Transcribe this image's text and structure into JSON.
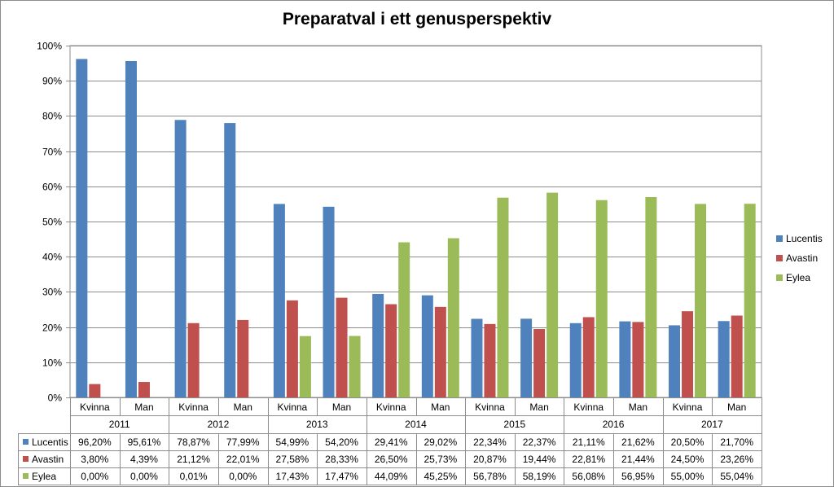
{
  "chart_data": {
    "type": "bar",
    "title": "Preparatval i ett genusperspektiv",
    "xlabel": "",
    "ylabel": "",
    "ylim": [
      0,
      100
    ],
    "yticks": [
      "0%",
      "10%",
      "20%",
      "30%",
      "40%",
      "50%",
      "60%",
      "70%",
      "80%",
      "90%",
      "100%"
    ],
    "grid": true,
    "legend": "right",
    "groups": [
      "2011",
      "2012",
      "2013",
      "2014",
      "2015",
      "2016",
      "2017"
    ],
    "categories": [
      "Kvinna",
      "Man",
      "Kvinna",
      "Man",
      "Kvinna",
      "Man",
      "Kvinna",
      "Man",
      "Kvinna",
      "Man",
      "Kvinna",
      "Man",
      "Kvinna",
      "Man"
    ],
    "series": [
      {
        "name": "Lucentis",
        "color": "#4f81bd",
        "values": [
          96.2,
          95.61,
          78.87,
          77.99,
          54.99,
          54.2,
          29.41,
          29.02,
          22.34,
          22.37,
          21.11,
          21.62,
          20.5,
          21.7
        ],
        "labels": [
          "96,20%",
          "95,61%",
          "78,87%",
          "77,99%",
          "54,99%",
          "54,20%",
          "29,41%",
          "29,02%",
          "22,34%",
          "22,37%",
          "21,11%",
          "21,62%",
          "20,50%",
          "21,70%"
        ]
      },
      {
        "name": "Avastin",
        "color": "#c0504d",
        "values": [
          3.8,
          4.39,
          21.12,
          22.01,
          27.58,
          28.33,
          26.5,
          25.73,
          20.87,
          19.44,
          22.81,
          21.44,
          24.5,
          23.26
        ],
        "labels": [
          "3,80%",
          "4,39%",
          "21,12%",
          "22,01%",
          "27,58%",
          "28,33%",
          "26,50%",
          "25,73%",
          "20,87%",
          "19,44%",
          "22,81%",
          "21,44%",
          "24,50%",
          "23,26%"
        ]
      },
      {
        "name": "Eylea",
        "color": "#9bbb59",
        "values": [
          0.0,
          0.0,
          0.01,
          0.0,
          17.43,
          17.47,
          44.09,
          45.25,
          56.78,
          58.19,
          56.08,
          56.95,
          55.0,
          55.04
        ],
        "labels": [
          "0,00%",
          "0,00%",
          "0,01%",
          "0,00%",
          "17,43%",
          "17,47%",
          "44,09%",
          "45,25%",
          "56,78%",
          "58,19%",
          "56,08%",
          "56,95%",
          "55,00%",
          "55,04%"
        ]
      }
    ]
  }
}
